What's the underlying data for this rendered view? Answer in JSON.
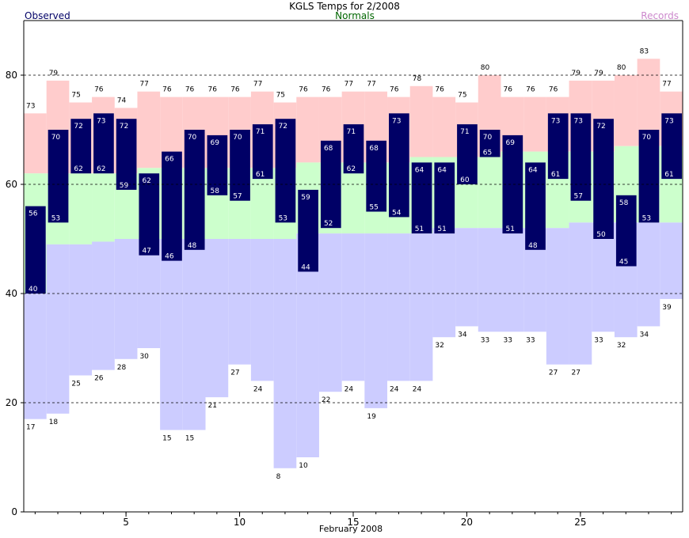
{
  "chart_data": {
    "type": "bar",
    "title": "KGLS Temps for 2/2008",
    "legend": {
      "observed": "Observed",
      "normals": "Normals",
      "records": "Records"
    },
    "xlabel": "February 2008",
    "ylabel": "",
    "ylim": [
      0,
      90
    ],
    "xlim": [
      0.5,
      29.5
    ],
    "yticks": [
      0,
      20,
      40,
      60,
      80
    ],
    "xticks": [
      5,
      10,
      15,
      20,
      25
    ],
    "days": [
      1,
      2,
      3,
      4,
      5,
      6,
      7,
      8,
      9,
      10,
      11,
      12,
      13,
      14,
      15,
      16,
      17,
      18,
      19,
      20,
      21,
      22,
      23,
      24,
      25,
      26,
      27,
      28,
      29
    ],
    "record_high": [
      73,
      79,
      75,
      76,
      74,
      77,
      76,
      76,
      76,
      76,
      77,
      75,
      76,
      76,
      77,
      77,
      76,
      78,
      76,
      75,
      80,
      76,
      76,
      76,
      79,
      79,
      80,
      83,
      77
    ],
    "record_low": [
      17,
      18,
      25,
      26,
      28,
      30,
      15,
      15,
      21,
      27,
      24,
      8,
      10,
      22,
      24,
      19,
      24,
      24,
      32,
      34,
      33,
      33,
      33,
      27,
      27,
      33,
      32,
      34,
      39
    ],
    "normal_high": [
      62,
      62,
      62,
      62,
      62,
      63,
      63,
      63,
      63,
      63,
      63,
      63,
      64,
      64,
      64,
      64,
      64,
      65,
      65,
      65,
      65,
      66,
      66,
      66,
      66,
      66,
      67,
      67,
      67
    ],
    "normal_low": [
      40,
      49,
      49,
      49.5,
      50,
      50,
      50,
      50,
      50,
      50,
      50,
      50,
      51,
      51,
      51,
      51,
      51,
      51,
      52,
      52,
      52,
      52,
      52,
      52,
      53,
      53,
      53,
      53,
      53
    ],
    "observed_high": [
      56,
      70,
      72,
      73,
      72,
      62,
      66,
      70,
      69,
      70,
      71,
      72,
      59,
      68,
      71,
      68,
      73,
      64,
      64,
      71,
      70,
      69,
      64,
      73,
      73,
      72,
      58,
      70,
      73
    ],
    "observed_low": [
      40,
      53,
      62,
      62,
      59,
      47,
      46,
      48,
      58,
      57,
      61,
      53,
      44,
      52,
      62,
      55,
      54,
      51,
      51,
      60,
      65,
      51,
      48,
      61,
      57,
      50,
      45,
      53,
      61
    ],
    "colors": {
      "records": "#ffcccc",
      "normals": "#ccffcc",
      "lows": "#ccccff",
      "observed": "#000066",
      "observed_label": "#000066",
      "normals_label": "#006600",
      "records_label": "#cc88cc"
    },
    "grid": "dashed at 20, 40, 60, 80"
  }
}
